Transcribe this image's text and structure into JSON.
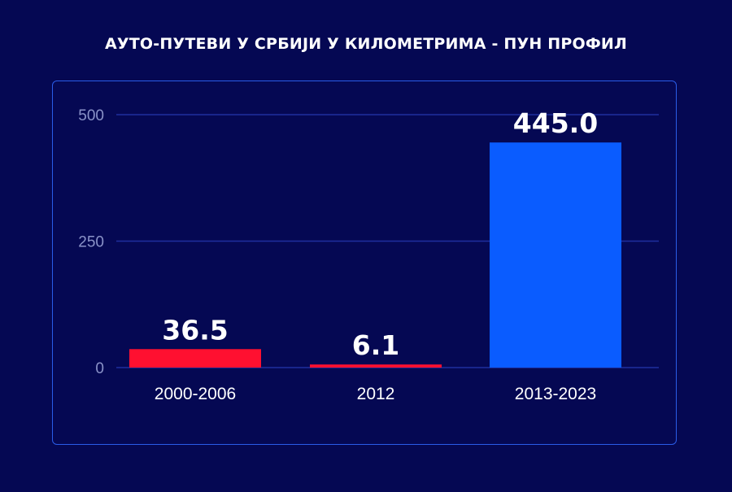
{
  "title": "АУТО-ПУТЕВИ У СРБИЈИ У КИЛОМЕТРИМА - ПУН ПРОФИЛ",
  "colors": {
    "background": "#050853",
    "panel_border": "#2a5ce8",
    "grid": "#1f2f9e",
    "tick_text": "#8a92c8",
    "bar_red": "#ff1030",
    "bar_blue": "#0a5cff",
    "label_text": "#ffffff"
  },
  "chart_data": {
    "type": "bar",
    "title": "АУТО-ПУТЕВИ У СРБИЈИ У КИЛОМЕТРИМА - ПУН ПРОФИЛ",
    "categories": [
      "2000-2006",
      "2012",
      "2013-2023"
    ],
    "values": [
      36.5,
      6.1,
      445.0
    ],
    "value_labels": [
      "36.5",
      "6.1",
      "445.0"
    ],
    "bar_colors": [
      "#ff1030",
      "#ff1030",
      "#0a5cff"
    ],
    "ylim": [
      0,
      500
    ],
    "yticks": [
      0,
      250,
      500
    ],
    "ytick_labels": [
      "0",
      "250",
      "500"
    ],
    "grid": true,
    "legend": "none",
    "xlabel": "",
    "ylabel": ""
  }
}
